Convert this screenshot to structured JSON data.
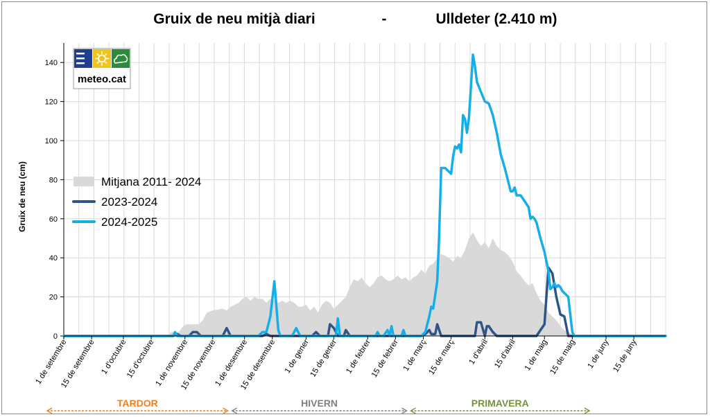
{
  "header": {
    "title_left": "Gruix de neu mitjà diari",
    "title_sep": "-",
    "title_right": "Ulldeter (2.410 m)"
  },
  "logo": {
    "text": "meteo.cat",
    "icons": [
      "lines-icon",
      "sun-icon",
      "cloud-icon"
    ],
    "colors": [
      "#1f3f8f",
      "#f0c419",
      "#2e8b3c"
    ]
  },
  "seasons": [
    {
      "name": "TARDOR",
      "color": "#f07f20",
      "start_day": 0,
      "end_day": 91
    },
    {
      "name": "HIVERN",
      "color": "#7f7f7f",
      "start_day": 91,
      "end_day": 181
    },
    {
      "name": "PRIMAVERA",
      "color": "#76923c",
      "start_day": 181,
      "end_day": 273
    }
  ],
  "chart_data": {
    "type": "area",
    "ylabel": "Gruix de neu (cm)",
    "ylim": [
      0,
      150
    ],
    "yticks": [
      0,
      20,
      40,
      60,
      80,
      100,
      120,
      140
    ],
    "xlim": [
      0,
      303
    ],
    "x_unit": "days from 1 de setembre",
    "x_ticks": [
      {
        "day": 0,
        "label": "1 de setembre"
      },
      {
        "day": 14,
        "label": "15 de setembre"
      },
      {
        "day": 30,
        "label": "1 d'octubre"
      },
      {
        "day": 44,
        "label": "15 d'octubre"
      },
      {
        "day": 61,
        "label": "1 de novembre"
      },
      {
        "day": 75,
        "label": "15 de novembre"
      },
      {
        "day": 91,
        "label": "1 de desembre"
      },
      {
        "day": 105,
        "label": "15 de desembre"
      },
      {
        "day": 122,
        "label": "1 de gener"
      },
      {
        "day": 136,
        "label": "15 de gener"
      },
      {
        "day": 153,
        "label": "1 de febrer"
      },
      {
        "day": 167,
        "label": "15 de febrer"
      },
      {
        "day": 181,
        "label": "1 de març"
      },
      {
        "day": 195,
        "label": "15 de març"
      },
      {
        "day": 212,
        "label": "1 d'abril"
      },
      {
        "day": 226,
        "label": "15 d'abril"
      },
      {
        "day": 242,
        "label": "1 de maig"
      },
      {
        "day": 256,
        "label": "15 de maig"
      },
      {
        "day": 273,
        "label": "1 de juny"
      },
      {
        "day": 287,
        "label": "15 de juny"
      }
    ],
    "legend_position": "middle-left",
    "grid": true,
    "series": [
      {
        "name": "Mitjana  2011- 2024",
        "kind": "area",
        "color": "#d9d9d9",
        "points": [
          [
            0,
            0
          ],
          [
            52,
            0
          ],
          [
            54,
            2
          ],
          [
            58,
            2
          ],
          [
            60,
            5
          ],
          [
            62,
            6
          ],
          [
            68,
            6
          ],
          [
            70,
            8
          ],
          [
            72,
            12
          ],
          [
            75,
            13
          ],
          [
            80,
            14
          ],
          [
            82,
            13
          ],
          [
            84,
            15
          ],
          [
            86,
            16
          ],
          [
            88,
            17
          ],
          [
            90,
            19
          ],
          [
            92,
            20
          ],
          [
            94,
            18
          ],
          [
            96,
            20
          ],
          [
            98,
            19
          ],
          [
            100,
            19
          ],
          [
            102,
            17
          ],
          [
            104,
            19
          ],
          [
            106,
            18
          ],
          [
            108,
            17
          ],
          [
            110,
            18
          ],
          [
            112,
            17
          ],
          [
            114,
            18
          ],
          [
            116,
            17
          ],
          [
            118,
            15
          ],
          [
            120,
            15
          ],
          [
            122,
            16
          ],
          [
            124,
            13
          ],
          [
            126,
            15
          ],
          [
            128,
            12
          ],
          [
            130,
            16
          ],
          [
            132,
            18
          ],
          [
            134,
            17
          ],
          [
            136,
            14
          ],
          [
            138,
            16
          ],
          [
            140,
            18
          ],
          [
            142,
            20
          ],
          [
            144,
            25
          ],
          [
            146,
            29
          ],
          [
            148,
            28
          ],
          [
            150,
            30
          ],
          [
            152,
            27
          ],
          [
            154,
            25
          ],
          [
            156,
            27
          ],
          [
            158,
            30
          ],
          [
            160,
            31
          ],
          [
            162,
            29
          ],
          [
            164,
            28
          ],
          [
            166,
            29
          ],
          [
            168,
            31
          ],
          [
            170,
            29
          ],
          [
            172,
            30
          ],
          [
            174,
            28
          ],
          [
            176,
            30
          ],
          [
            178,
            31
          ],
          [
            180,
            34
          ],
          [
            182,
            32
          ],
          [
            184,
            36
          ],
          [
            186,
            37
          ],
          [
            188,
            40
          ],
          [
            190,
            42
          ],
          [
            192,
            41
          ],
          [
            194,
            40
          ],
          [
            196,
            38
          ],
          [
            198,
            41
          ],
          [
            200,
            40
          ],
          [
            202,
            44
          ],
          [
            204,
            50
          ],
          [
            206,
            53
          ],
          [
            208,
            49
          ],
          [
            210,
            46
          ],
          [
            212,
            48
          ],
          [
            214,
            45
          ],
          [
            216,
            50
          ],
          [
            218,
            46
          ],
          [
            220,
            44
          ],
          [
            222,
            43
          ],
          [
            224,
            41
          ],
          [
            226,
            38
          ],
          [
            228,
            33
          ],
          [
            230,
            31
          ],
          [
            232,
            28
          ],
          [
            234,
            26
          ],
          [
            236,
            27
          ],
          [
            238,
            22
          ],
          [
            240,
            18
          ],
          [
            242,
            16
          ],
          [
            244,
            12
          ],
          [
            246,
            10
          ],
          [
            248,
            8
          ],
          [
            250,
            5
          ],
          [
            252,
            3
          ],
          [
            254,
            2
          ],
          [
            256,
            1
          ],
          [
            258,
            0
          ],
          [
            303,
            0
          ]
        ]
      },
      {
        "name": "2023-2024",
        "kind": "line",
        "color": "#2f5486",
        "points": [
          [
            0,
            0
          ],
          [
            55,
            0
          ],
          [
            57,
            1
          ],
          [
            59,
            0
          ],
          [
            63,
            0
          ],
          [
            65,
            2
          ],
          [
            67,
            2
          ],
          [
            69,
            0
          ],
          [
            80,
            0
          ],
          [
            82,
            4
          ],
          [
            84,
            0
          ],
          [
            100,
            0
          ],
          [
            102,
            1
          ],
          [
            104,
            0
          ],
          [
            125,
            0
          ],
          [
            127,
            2
          ],
          [
            129,
            0
          ],
          [
            133,
            0
          ],
          [
            134,
            6
          ],
          [
            136,
            4
          ],
          [
            138,
            0
          ],
          [
            141,
            0
          ],
          [
            142,
            3
          ],
          [
            144,
            0
          ],
          [
            180,
            0
          ],
          [
            182,
            1
          ],
          [
            184,
            3
          ],
          [
            185,
            1
          ],
          [
            187,
            1
          ],
          [
            188,
            6
          ],
          [
            190,
            0
          ],
          [
            207,
            0
          ],
          [
            208,
            7
          ],
          [
            210,
            7
          ],
          [
            212,
            0
          ],
          [
            213,
            5
          ],
          [
            214,
            5
          ],
          [
            216,
            2
          ],
          [
            218,
            0
          ],
          [
            238,
            0
          ],
          [
            240,
            3
          ],
          [
            242,
            6
          ],
          [
            244,
            35
          ],
          [
            246,
            32
          ],
          [
            248,
            20
          ],
          [
            250,
            11
          ],
          [
            252,
            10
          ],
          [
            254,
            0
          ],
          [
            303,
            0
          ]
        ]
      },
      {
        "name": "2024-2025",
        "kind": "line",
        "color": "#15aee8",
        "points": [
          [
            0,
            0
          ],
          [
            55,
            0
          ],
          [
            56,
            2
          ],
          [
            57,
            0
          ],
          [
            98,
            0
          ],
          [
            100,
            2
          ],
          [
            102,
            2
          ],
          [
            104,
            10
          ],
          [
            106,
            28
          ],
          [
            108,
            3
          ],
          [
            109,
            0
          ],
          [
            115,
            0
          ],
          [
            117,
            4
          ],
          [
            119,
            0
          ],
          [
            137,
            0
          ],
          [
            138,
            9
          ],
          [
            139,
            0
          ],
          [
            157,
            0
          ],
          [
            158,
            2
          ],
          [
            159,
            0
          ],
          [
            161,
            0
          ],
          [
            163,
            3
          ],
          [
            164,
            0
          ],
          [
            165,
            5
          ],
          [
            166,
            0
          ],
          [
            170,
            0
          ],
          [
            171,
            3
          ],
          [
            172,
            0
          ],
          [
            180,
            0
          ],
          [
            182,
            2
          ],
          [
            184,
            10
          ],
          [
            185,
            15
          ],
          [
            186,
            14
          ],
          [
            188,
            28
          ],
          [
            189,
            52
          ],
          [
            190,
            86
          ],
          [
            192,
            86
          ],
          [
            194,
            84
          ],
          [
            195,
            83
          ],
          [
            196,
            92
          ],
          [
            197,
            97
          ],
          [
            198,
            96
          ],
          [
            199,
            98
          ],
          [
            200,
            94
          ],
          [
            201,
            113
          ],
          [
            202,
            111
          ],
          [
            203,
            104
          ],
          [
            204,
            112
          ],
          [
            205,
            128
          ],
          [
            206,
            144
          ],
          [
            207,
            138
          ],
          [
            208,
            130
          ],
          [
            210,
            125
          ],
          [
            212,
            120
          ],
          [
            214,
            119
          ],
          [
            216,
            113
          ],
          [
            218,
            104
          ],
          [
            220,
            93
          ],
          [
            222,
            86
          ],
          [
            224,
            78
          ],
          [
            225,
            74
          ],
          [
            226,
            74
          ],
          [
            227,
            76
          ],
          [
            228,
            72
          ],
          [
            230,
            72
          ],
          [
            232,
            69
          ],
          [
            234,
            66
          ],
          [
            235,
            60
          ],
          [
            236,
            61
          ],
          [
            237,
            60
          ],
          [
            238,
            58
          ],
          [
            240,
            50
          ],
          [
            242,
            43
          ],
          [
            244,
            33
          ],
          [
            245,
            24
          ],
          [
            246,
            25
          ],
          [
            247,
            27
          ],
          [
            248,
            25
          ],
          [
            249,
            26
          ],
          [
            250,
            25
          ],
          [
            251,
            23
          ],
          [
            252,
            22
          ],
          [
            253,
            21
          ],
          [
            254,
            20
          ],
          [
            255,
            11
          ],
          [
            256,
            2
          ],
          [
            257,
            0
          ],
          [
            303,
            0
          ]
        ]
      }
    ]
  }
}
